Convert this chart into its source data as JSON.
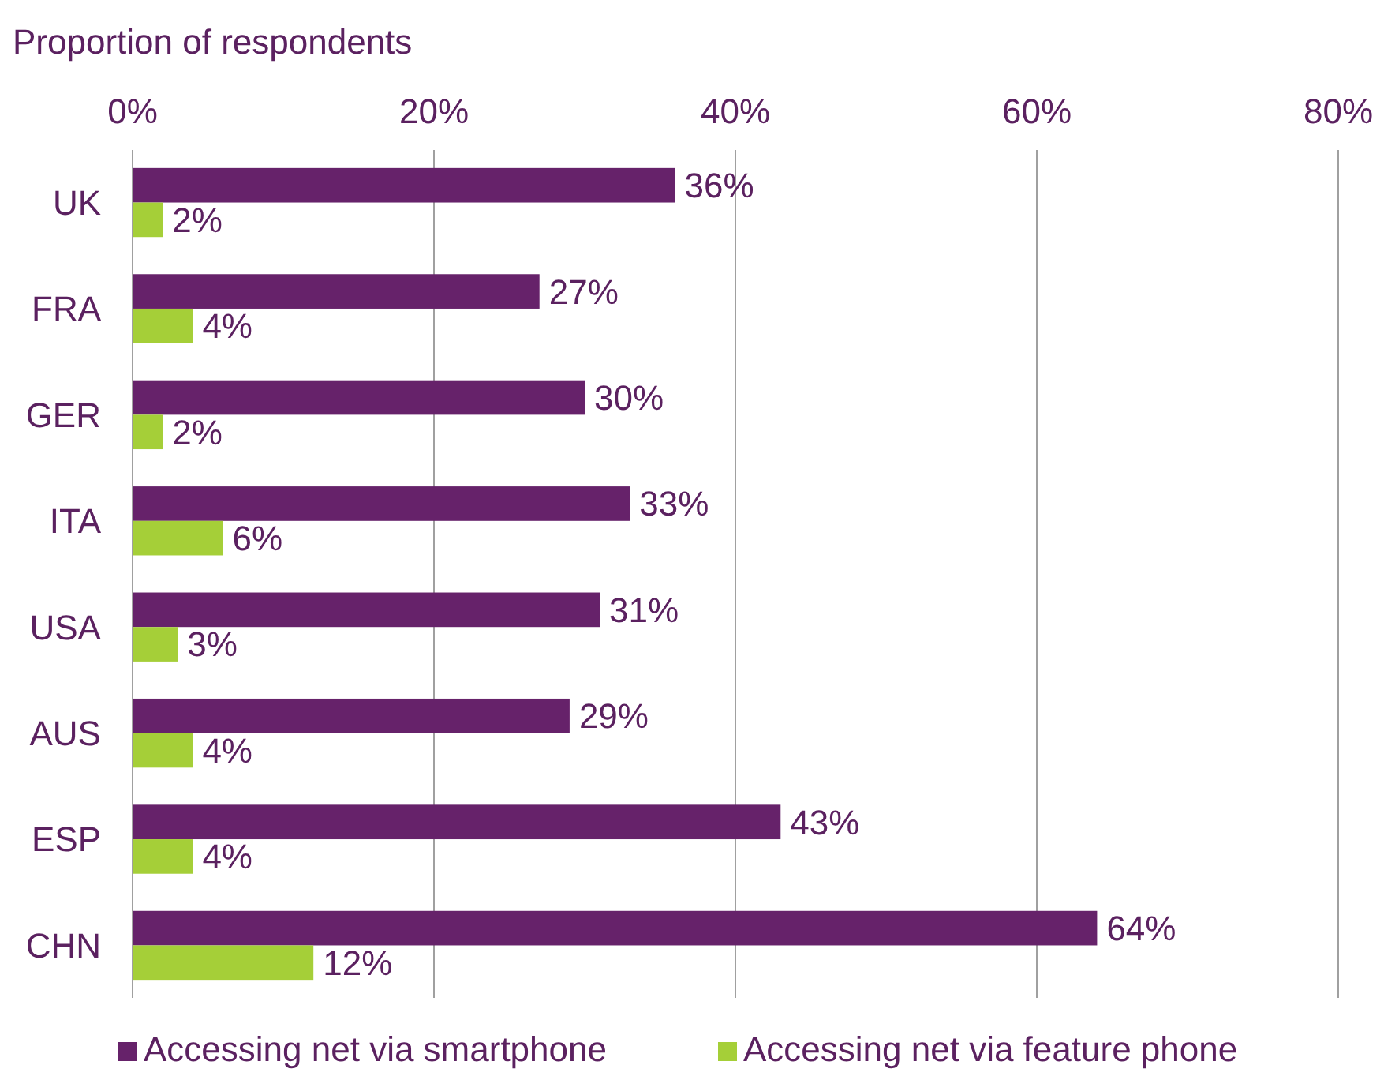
{
  "chart_data": {
    "type": "bar",
    "orientation": "horizontal",
    "xlabel": "Proportion of respondents",
    "categories": [
      "UK",
      "FRA",
      "GER",
      "ITA",
      "USA",
      "AUS",
      "ESP",
      "CHN"
    ],
    "series": [
      {
        "name": "Accessing net via smartphone",
        "color": "#66226a",
        "values": [
          36,
          27,
          30,
          33,
          31,
          29,
          43,
          64
        ],
        "value_labels": [
          "36%",
          "27%",
          "30%",
          "33%",
          "31%",
          "29%",
          "43%",
          "64%"
        ]
      },
      {
        "name": "Accessing net via feature phone",
        "color": "#a5cf38",
        "values": [
          2,
          4,
          2,
          6,
          3,
          4,
          4,
          12
        ],
        "value_labels": [
          "2%",
          "4%",
          "2%",
          "6%",
          "3%",
          "4%",
          "4%",
          "12%"
        ]
      }
    ],
    "xlim": [
      0,
      80
    ],
    "xticks": [
      {
        "value": 0,
        "label": "0%"
      },
      {
        "value": 20,
        "label": "20%"
      },
      {
        "value": 40,
        "label": "40%"
      },
      {
        "value": 60,
        "label": "60%"
      },
      {
        "value": 80,
        "label": "80%"
      }
    ],
    "grid": "x",
    "legend": "bottom"
  }
}
